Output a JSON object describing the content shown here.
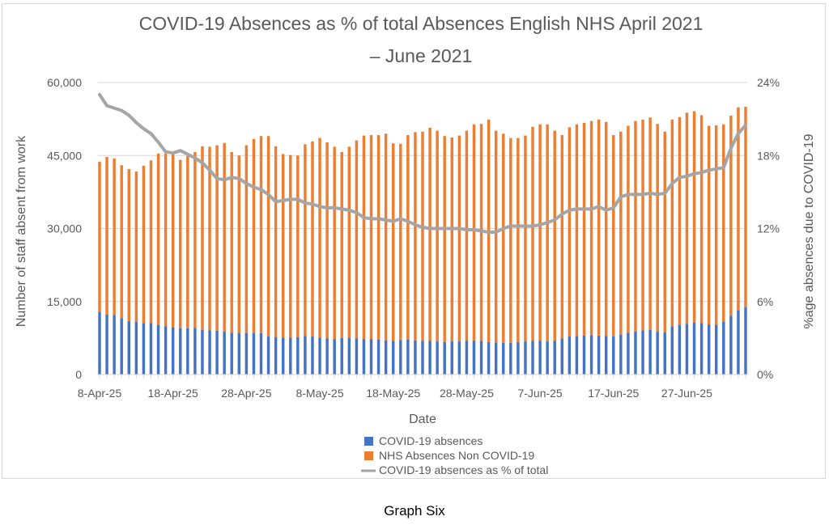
{
  "caption": "Graph Six",
  "chart_data": {
    "type": "bar",
    "title": "COVID-19 Absences as % of total Absences English NHS April 2021 – June 2021",
    "title_lines": [
      "COVID-19 Absences as % of total Absences English NHS April 2021",
      "– June 2021"
    ],
    "xlabel": "Date",
    "ylabel": "Number of staff absent from work",
    "y2label": "%age absences due to COVID-19",
    "stacked": true,
    "ylim": [
      0,
      60000
    ],
    "yticks": [
      "0",
      "15,000",
      "30,000",
      "45,000",
      "60,000"
    ],
    "y2lim": [
      0,
      24
    ],
    "y2ticks": [
      "0%",
      "6%",
      "12%",
      "18%",
      "24%"
    ],
    "xticks": [
      "8-Apr-25",
      "18-Apr-25",
      "28-Apr-25",
      "8-May-25",
      "18-May-25",
      "28-May-25",
      "7-Jun-25",
      "17-Jun-25",
      "27-Jun-25"
    ],
    "grid": true,
    "legend_position": "bottom",
    "colors": {
      "covid": "#4472c4",
      "non_covid": "#ed7d31",
      "pct": "#a5a5a5"
    },
    "series": [
      {
        "name": "COVID-19 absences",
        "kind": "bar",
        "values": [
          12800,
          12300,
          12200,
          11600,
          11000,
          10800,
          10600,
          10600,
          10200,
          9900,
          9700,
          9500,
          9500,
          9600,
          9200,
          9100,
          9000,
          8800,
          8600,
          8600,
          8500,
          8600,
          8500,
          7800,
          7700,
          7600,
          7600,
          7700,
          7900,
          7800,
          7600,
          7400,
          7300,
          7500,
          7600,
          7400,
          7300,
          7300,
          7200,
          7000,
          6900,
          7100,
          7200,
          7000,
          6900,
          6900,
          6800,
          6700,
          6800,
          6800,
          6900,
          7000,
          6900,
          6700,
          6600,
          6500,
          6500,
          6700,
          6800,
          6900,
          6900,
          6800,
          6900,
          7400,
          7800,
          7900,
          8000,
          8100,
          8000,
          7900,
          7800,
          8200,
          8600,
          8800,
          9100,
          9200,
          8800,
          8700,
          9800,
          10200,
          10400,
          10700,
          10600,
          10300,
          10200,
          10800,
          12100,
          13200,
          13800
        ]
      },
      {
        "name": "NHS Absences Non COVID-19",
        "kind": "bar",
        "values": [
          30900,
          32400,
          32200,
          31400,
          31200,
          30900,
          32300,
          33400,
          35200,
          35500,
          35600,
          34600,
          35400,
          36100,
          37700,
          37700,
          38100,
          38800,
          37100,
          36400,
          38600,
          39800,
          40500,
          41200,
          39200,
          37700,
          37500,
          37300,
          39400,
          40100,
          41000,
          40300,
          39500,
          38200,
          39200,
          40700,
          41800,
          41900,
          42000,
          42500,
          40600,
          40300,
          42000,
          42800,
          43000,
          43800,
          43300,
          42300,
          41900,
          42300,
          43200,
          44400,
          44600,
          45700,
          43500,
          43000,
          42100,
          41900,
          42300,
          44000,
          44500,
          44600,
          43200,
          41800,
          43000,
          43500,
          43700,
          44000,
          44400,
          44000,
          41400,
          41700,
          42500,
          43300,
          43300,
          43600,
          42700,
          41200,
          42600,
          42700,
          43400,
          43400,
          42700,
          40800,
          41000,
          40600,
          41100,
          41700,
          41200
        ]
      },
      {
        "name": "COVID-19 absences as % of total",
        "kind": "line",
        "axis": "right",
        "values": [
          23.0,
          22.1,
          21.9,
          21.7,
          21.3,
          20.7,
          20.2,
          19.8,
          19.1,
          18.3,
          18.2,
          18.4,
          18.1,
          17.8,
          17.4,
          16.8,
          16.1,
          16.0,
          16.2,
          16.1,
          15.7,
          15.4,
          15.2,
          14.8,
          14.2,
          14.3,
          14.4,
          14.4,
          14.1,
          14.0,
          13.8,
          13.7,
          13.7,
          13.6,
          13.5,
          13.3,
          12.9,
          12.8,
          12.8,
          12.7,
          12.6,
          12.8,
          12.6,
          12.3,
          12.1,
          12.0,
          12.0,
          12.0,
          12.0,
          12.0,
          11.9,
          11.9,
          11.8,
          11.7,
          11.7,
          12.0,
          12.2,
          12.2,
          12.2,
          12.2,
          12.3,
          12.5,
          12.7,
          13.2,
          13.5,
          13.6,
          13.6,
          13.6,
          13.8,
          13.5,
          13.7,
          14.6,
          14.8,
          14.8,
          14.8,
          14.9,
          14.8,
          14.9,
          15.7,
          16.2,
          16.3,
          16.5,
          16.6,
          16.8,
          16.9,
          17.0,
          18.6,
          19.8,
          20.5
        ]
      }
    ]
  }
}
